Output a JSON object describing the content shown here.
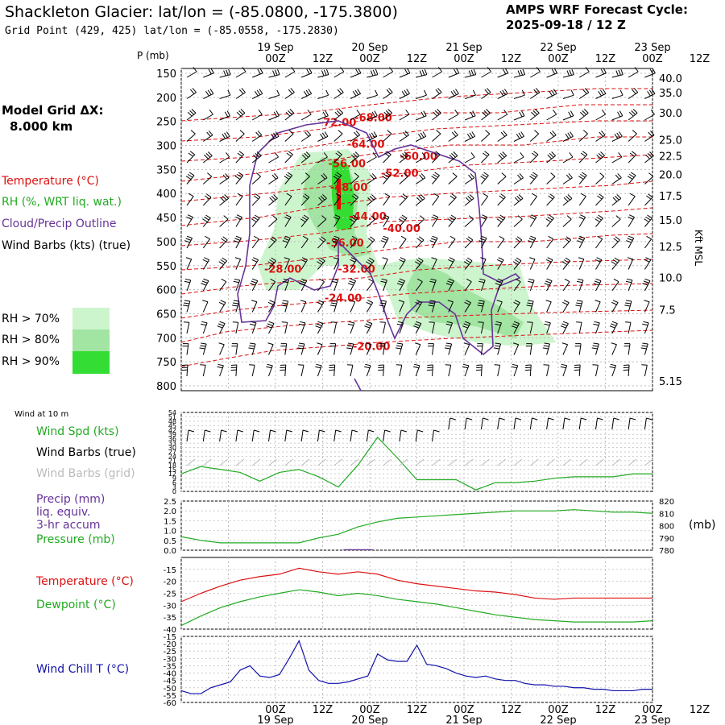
{
  "header": {
    "title": "Shackleton Glacier:  lat/lon = (-85.0800, -175.3800)",
    "grid_point": "Grid Point (429, 425) lat/lon = (-85.0558, -175.2830)",
    "cycle_line1": "AMPS WRF Forecast Cycle:",
    "cycle_line2": "2025-09-18 / 12  Z"
  },
  "legend": {
    "model_grid_line1": "Model Grid ΔX:",
    "model_grid_line2": "8.000 km",
    "temperature": "Temperature (°C)",
    "rh": "RH (%, WRT liq. wat.)",
    "cloud": "Cloud/Precip Outline",
    "wind_barbs": "Wind Barbs (kts) (true)",
    "rh70": "RH > 70%",
    "rh80": "RH > 80%",
    "rh90": "RH > 90%",
    "wind10m": "Wind at 10 m",
    "wind_spd": "Wind Spd (kts)",
    "wind_barbs_true": "Wind Barbs (true)",
    "wind_barbs_grid": "Wind Barbs (grid)",
    "precip1": "Precip (mm)",
    "precip2": "liq. equiv.",
    "precip3": "3-hr accum",
    "pressure": "Pressure (mb)",
    "pressure_unit": "(mb)",
    "temperature2": "Temperature (°C)",
    "dewpoint": "Dewpoint (°C)",
    "windchill": "Wind Chill T (°C)",
    "p_axis": "P (mb)",
    "kft_axis": "Kft MSL"
  },
  "colors": {
    "temperature": "#dd1111",
    "rh": "#22aa22",
    "cloud": "#663399",
    "windchill": "#1111aa",
    "rh70": "#cdf5cd",
    "rh80": "#a2e4a2",
    "rh90": "#33dd33"
  },
  "chart_data": [
    {
      "type": "heatmap",
      "name": "cross-section",
      "time_ticks_top": [
        "00Z",
        "12Z",
        "00Z",
        "12Z",
        "00Z",
        "12Z",
        "00Z",
        "12Z",
        "00Z",
        "12Z"
      ],
      "date_labels_top": [
        "19 Sep",
        "20 Sep",
        "21 Sep",
        "22 Sep",
        "23 Sep"
      ],
      "y_pressure_ticks": [
        "150",
        "200",
        "250",
        "300",
        "350",
        "400",
        "450",
        "500",
        "550",
        "600",
        "650",
        "700",
        "750",
        "800"
      ],
      "y_pressure_values": [
        150,
        200,
        250,
        300,
        350,
        400,
        450,
        500,
        550,
        600,
        650,
        700,
        750,
        800
      ],
      "kft_ticks": [
        "40.0",
        "35.0",
        "30.0",
        "25.0",
        "22.5",
        "20.0",
        "17.5",
        "15.0",
        "12.5",
        "10.0",
        "7.5",
        "5.15"
      ],
      "kft_pressure": [
        160,
        190,
        232,
        288,
        322,
        360,
        405,
        455,
        510,
        575,
        642,
        790
      ],
      "temperature_labels": [
        {
          "text": "-72.00",
          "t": 1.46,
          "p": 260
        },
        {
          "text": "-68.00",
          "t": 1.84,
          "p": 250
        },
        {
          "text": "-64.00",
          "t": 1.76,
          "p": 305
        },
        {
          "text": "-60.00",
          "t": 2.32,
          "p": 330
        },
        {
          "text": "-56.00",
          "t": 1.56,
          "p": 345
        },
        {
          "text": "-52.00",
          "t": 2.12,
          "p": 365
        },
        {
          "text": "-48.00",
          "t": 1.58,
          "p": 395
        },
        {
          "text": "-44.00",
          "t": 1.78,
          "p": 455
        },
        {
          "text": "-40.00",
          "t": 2.14,
          "p": 480
        },
        {
          "text": "-36.00",
          "t": 1.54,
          "p": 510
        },
        {
          "text": "-32.00",
          "t": 1.66,
          "p": 565
        },
        {
          "text": "-28.00",
          "t": 0.88,
          "p": 565
        },
        {
          "text": "-24.00",
          "t": 1.52,
          "p": 625
        },
        {
          "text": "-20.00",
          "t": 1.82,
          "p": 725
        }
      ]
    },
    {
      "type": "line",
      "name": "wind-10m",
      "x_hours": [
        0,
        6,
        12,
        18,
        24,
        30,
        36,
        42,
        48,
        54,
        60,
        66,
        72,
        78,
        84,
        90,
        96,
        102,
        108,
        114,
        120,
        126,
        132,
        138,
        144
      ],
      "series": [
        {
          "name": "Wind Spd (kts)",
          "values": [
            12,
            17,
            15,
            13,
            7,
            13,
            15,
            10,
            3,
            18,
            37,
            23,
            8,
            8,
            8,
            1,
            6,
            6,
            7,
            9,
            10,
            10,
            10,
            12,
            12
          ]
        }
      ],
      "yticks": [
        "0",
        "3",
        "6",
        "9",
        "12",
        "15",
        "18",
        "21",
        "24",
        "27",
        "30",
        "33",
        "36",
        "39",
        "42",
        "45",
        "48",
        "51",
        "54"
      ],
      "ylim": [
        0,
        54
      ]
    },
    {
      "type": "line",
      "name": "precip-pressure",
      "x_hours": [
        0,
        6,
        12,
        18,
        24,
        30,
        36,
        42,
        48,
        54,
        60,
        66,
        72,
        78,
        84,
        90,
        96,
        102,
        108,
        114,
        120,
        126,
        132,
        138,
        144
      ],
      "series": [
        {
          "name": "Pressure (mb)",
          "values": [
            791,
            788,
            786,
            786,
            786,
            786,
            786,
            790,
            793,
            799,
            803,
            806,
            807,
            808,
            809,
            810,
            811,
            812,
            812,
            812,
            813,
            812,
            811,
            811,
            810
          ]
        }
      ],
      "precip": [
        {
          "t": 54,
          "mm": 0.05
        }
      ],
      "yticks_left": [
        "0.0",
        "0.5",
        "1.0",
        "1.5",
        "2.0",
        "2.5"
      ],
      "yticks_right": [
        "780",
        "790",
        "800",
        "810",
        "820"
      ],
      "ylim_left": [
        0,
        2.5
      ],
      "ylim_right": [
        780,
        820
      ]
    },
    {
      "type": "line",
      "name": "temp-dewpoint",
      "x_hours": [
        0,
        6,
        12,
        18,
        24,
        30,
        36,
        42,
        48,
        54,
        60,
        66,
        72,
        78,
        84,
        90,
        96,
        102,
        108,
        114,
        120,
        126,
        132,
        138,
        144
      ],
      "series": [
        {
          "name": "Temperature (°C)",
          "values": [
            -28.5,
            -25,
            -22,
            -19.5,
            -18,
            -17,
            -14.5,
            -16,
            -17,
            -16,
            -17,
            -19.5,
            -21,
            -22,
            -23,
            -24,
            -24.5,
            -25.5,
            -27,
            -27.5,
            -27,
            -27,
            -27,
            -27,
            -27
          ]
        },
        {
          "name": "Dewpoint (°C)",
          "values": [
            -38.5,
            -34.5,
            -31,
            -28.5,
            -26.5,
            -25,
            -23.5,
            -24.5,
            -26,
            -25,
            -26,
            -27.5,
            -28.5,
            -29.5,
            -31,
            -32.5,
            -34,
            -35,
            -36,
            -36.5,
            -37,
            -37,
            -37,
            -37,
            -36.5
          ]
        }
      ],
      "yticks": [
        "-40",
        "-35",
        "-30",
        "-25",
        "-20",
        "-15"
      ],
      "ylim": [
        -40,
        -10
      ]
    },
    {
      "type": "line",
      "name": "wind-chill",
      "x_hours": [
        0,
        3,
        6,
        9,
        12,
        15,
        18,
        21,
        24,
        27,
        30,
        33,
        36,
        39,
        42,
        45,
        48,
        51,
        54,
        57,
        60,
        63,
        66,
        69,
        72,
        75,
        78,
        81,
        84,
        87,
        90,
        93,
        96,
        99,
        102,
        105,
        108,
        111,
        114,
        117,
        120,
        123,
        126,
        129,
        132,
        135,
        138,
        141,
        144
      ],
      "series": [
        {
          "name": "Wind Chill T (°C)",
          "values": [
            -52,
            -54,
            -54,
            -50,
            -48,
            -46,
            -38,
            -35,
            -42,
            -43,
            -41,
            -30,
            -18,
            -38,
            -45,
            -47,
            -47,
            -46,
            -44,
            -42,
            -27,
            -31,
            -32,
            -32,
            -21,
            -34,
            -35,
            -37,
            -40,
            -42,
            -43,
            -42,
            -44,
            -45,
            -45,
            -47,
            -48,
            -48,
            -49,
            -49,
            -50,
            -50,
            -51,
            -51,
            -52,
            -52,
            -52,
            -51,
            -51
          ]
        }
      ],
      "yticks": [
        "-60",
        "-55",
        "-50",
        "-45",
        "-40",
        "-35",
        "-30",
        "-25",
        "-20",
        "-15"
      ],
      "ylim": [
        -60,
        -15
      ]
    },
    {
      "type": "line",
      "name": "bottom-time-axis",
      "time_ticks_bottom": [
        "00Z",
        "12Z",
        "00Z",
        "12Z",
        "00Z",
        "12Z",
        "00Z",
        "12Z",
        "00Z",
        "12Z"
      ],
      "date_labels_bottom": [
        "19 Sep",
        "20 Sep",
        "21 Sep",
        "22 Sep",
        "23 Sep"
      ]
    }
  ]
}
